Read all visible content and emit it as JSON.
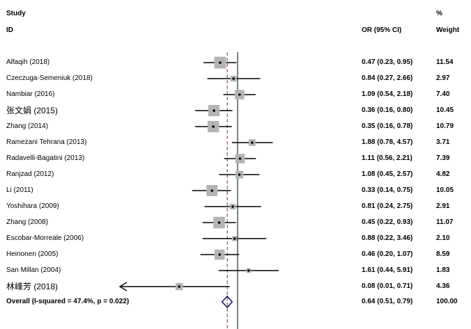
{
  "header": {
    "study_line1": "Study",
    "study_line2": "ID",
    "or_label": "OR (95% CI)",
    "weight_line1": "%",
    "weight_line2": "Weight"
  },
  "chart_data": {
    "type": "forest",
    "x_scale": "log",
    "xlim": [
      0.01,
      6.5
    ],
    "null_line": 1,
    "pooled_line": 0.64,
    "studies": [
      {
        "study": "Alfaqih (2018)",
        "or": 0.47,
        "lo": 0.23,
        "hi": 0.95,
        "ci_text": "0.47 (0.23, 0.95)",
        "weight": 11.54,
        "weight_text": "11.54"
      },
      {
        "study": "Czeczuga-Semeniuk (2018)",
        "or": 0.84,
        "lo": 0.27,
        "hi": 2.66,
        "ci_text": "0.84 (0.27, 2.66)",
        "weight": 2.97,
        "weight_text": "2.97"
      },
      {
        "study": "Nambiar (2016)",
        "or": 1.09,
        "lo": 0.54,
        "hi": 2.18,
        "ci_text": "1.09 (0.54, 2.18)",
        "weight": 7.4,
        "weight_text": "7.40"
      },
      {
        "study": "张文娟 (2015)",
        "or": 0.36,
        "lo": 0.16,
        "hi": 0.8,
        "ci_text": "0.36 (0.16, 0.80)",
        "weight": 10.45,
        "weight_text": "10.45"
      },
      {
        "study": "Zhang (2014)",
        "or": 0.35,
        "lo": 0.16,
        "hi": 0.78,
        "ci_text": "0.35 (0.16, 0.78)",
        "weight": 10.79,
        "weight_text": "10.79"
      },
      {
        "study": "Ramezani Tehrana (2013)",
        "or": 1.88,
        "lo": 0.78,
        "hi": 4.57,
        "ci_text": "1.88 (0.78, 4.57)",
        "weight": 3.71,
        "weight_text": "3.71"
      },
      {
        "study": "Radavelli-Bagatini (2013)",
        "or": 1.11,
        "lo": 0.56,
        "hi": 2.21,
        "ci_text": "1.11 (0.56, 2.21)",
        "weight": 7.39,
        "weight_text": "7.39"
      },
      {
        "study": "Ranjzad (2012)",
        "or": 1.08,
        "lo": 0.45,
        "hi": 2.57,
        "ci_text": "1.08 (0.45, 2.57)",
        "weight": 4.82,
        "weight_text": "4.82"
      },
      {
        "study": "Li (2011)",
        "or": 0.33,
        "lo": 0.14,
        "hi": 0.75,
        "ci_text": "0.33 (0.14, 0.75)",
        "weight": 10.05,
        "weight_text": "10.05"
      },
      {
        "study": "Yoshihara (2009)",
        "or": 0.81,
        "lo": 0.24,
        "hi": 2.75,
        "ci_text": "0.81 (0.24, 2.75)",
        "weight": 2.91,
        "weight_text": "2.91"
      },
      {
        "study": "Zhang (2008)",
        "or": 0.45,
        "lo": 0.22,
        "hi": 0.93,
        "ci_text": "0.45 (0.22, 0.93)",
        "weight": 11.07,
        "weight_text": "11.07"
      },
      {
        "study": "Escobar-Morreale (2006)",
        "or": 0.88,
        "lo": 0.22,
        "hi": 3.46,
        "ci_text": "0.88 (0.22, 3.46)",
        "weight": 2.1,
        "weight_text": "2.10"
      },
      {
        "study": "Heinonen (2005)",
        "or": 0.46,
        "lo": 0.2,
        "hi": 1.07,
        "ci_text": "0.46 (0.20, 1.07)",
        "weight": 8.59,
        "weight_text": "8.59"
      },
      {
        "study": "San Millan (2004)",
        "or": 1.61,
        "lo": 0.44,
        "hi": 5.91,
        "ci_text": "1.61 (0.44, 5.91)",
        "weight": 1.83,
        "weight_text": "1.83"
      },
      {
        "study": "林峰芳 (2018)",
        "or": 0.08,
        "lo": 0.01,
        "hi": 0.71,
        "ci_text": "0.08 (0.01, 0.71)",
        "weight": 4.36,
        "weight_text": "4.36",
        "lo_truncated": true
      }
    ],
    "overall": {
      "label": "Overall  (I-squared = 47.4%, p = 0.022)",
      "or": 0.64,
      "lo": 0.51,
      "hi": 0.79,
      "ci_text": "0.64 (0.51, 0.79)",
      "weight_text": "100.00"
    }
  },
  "colors": {
    "box": "#b4b4b4",
    "line": "#000000",
    "diamond": "#1f1a6b",
    "pooled_line": "#a0262e"
  }
}
